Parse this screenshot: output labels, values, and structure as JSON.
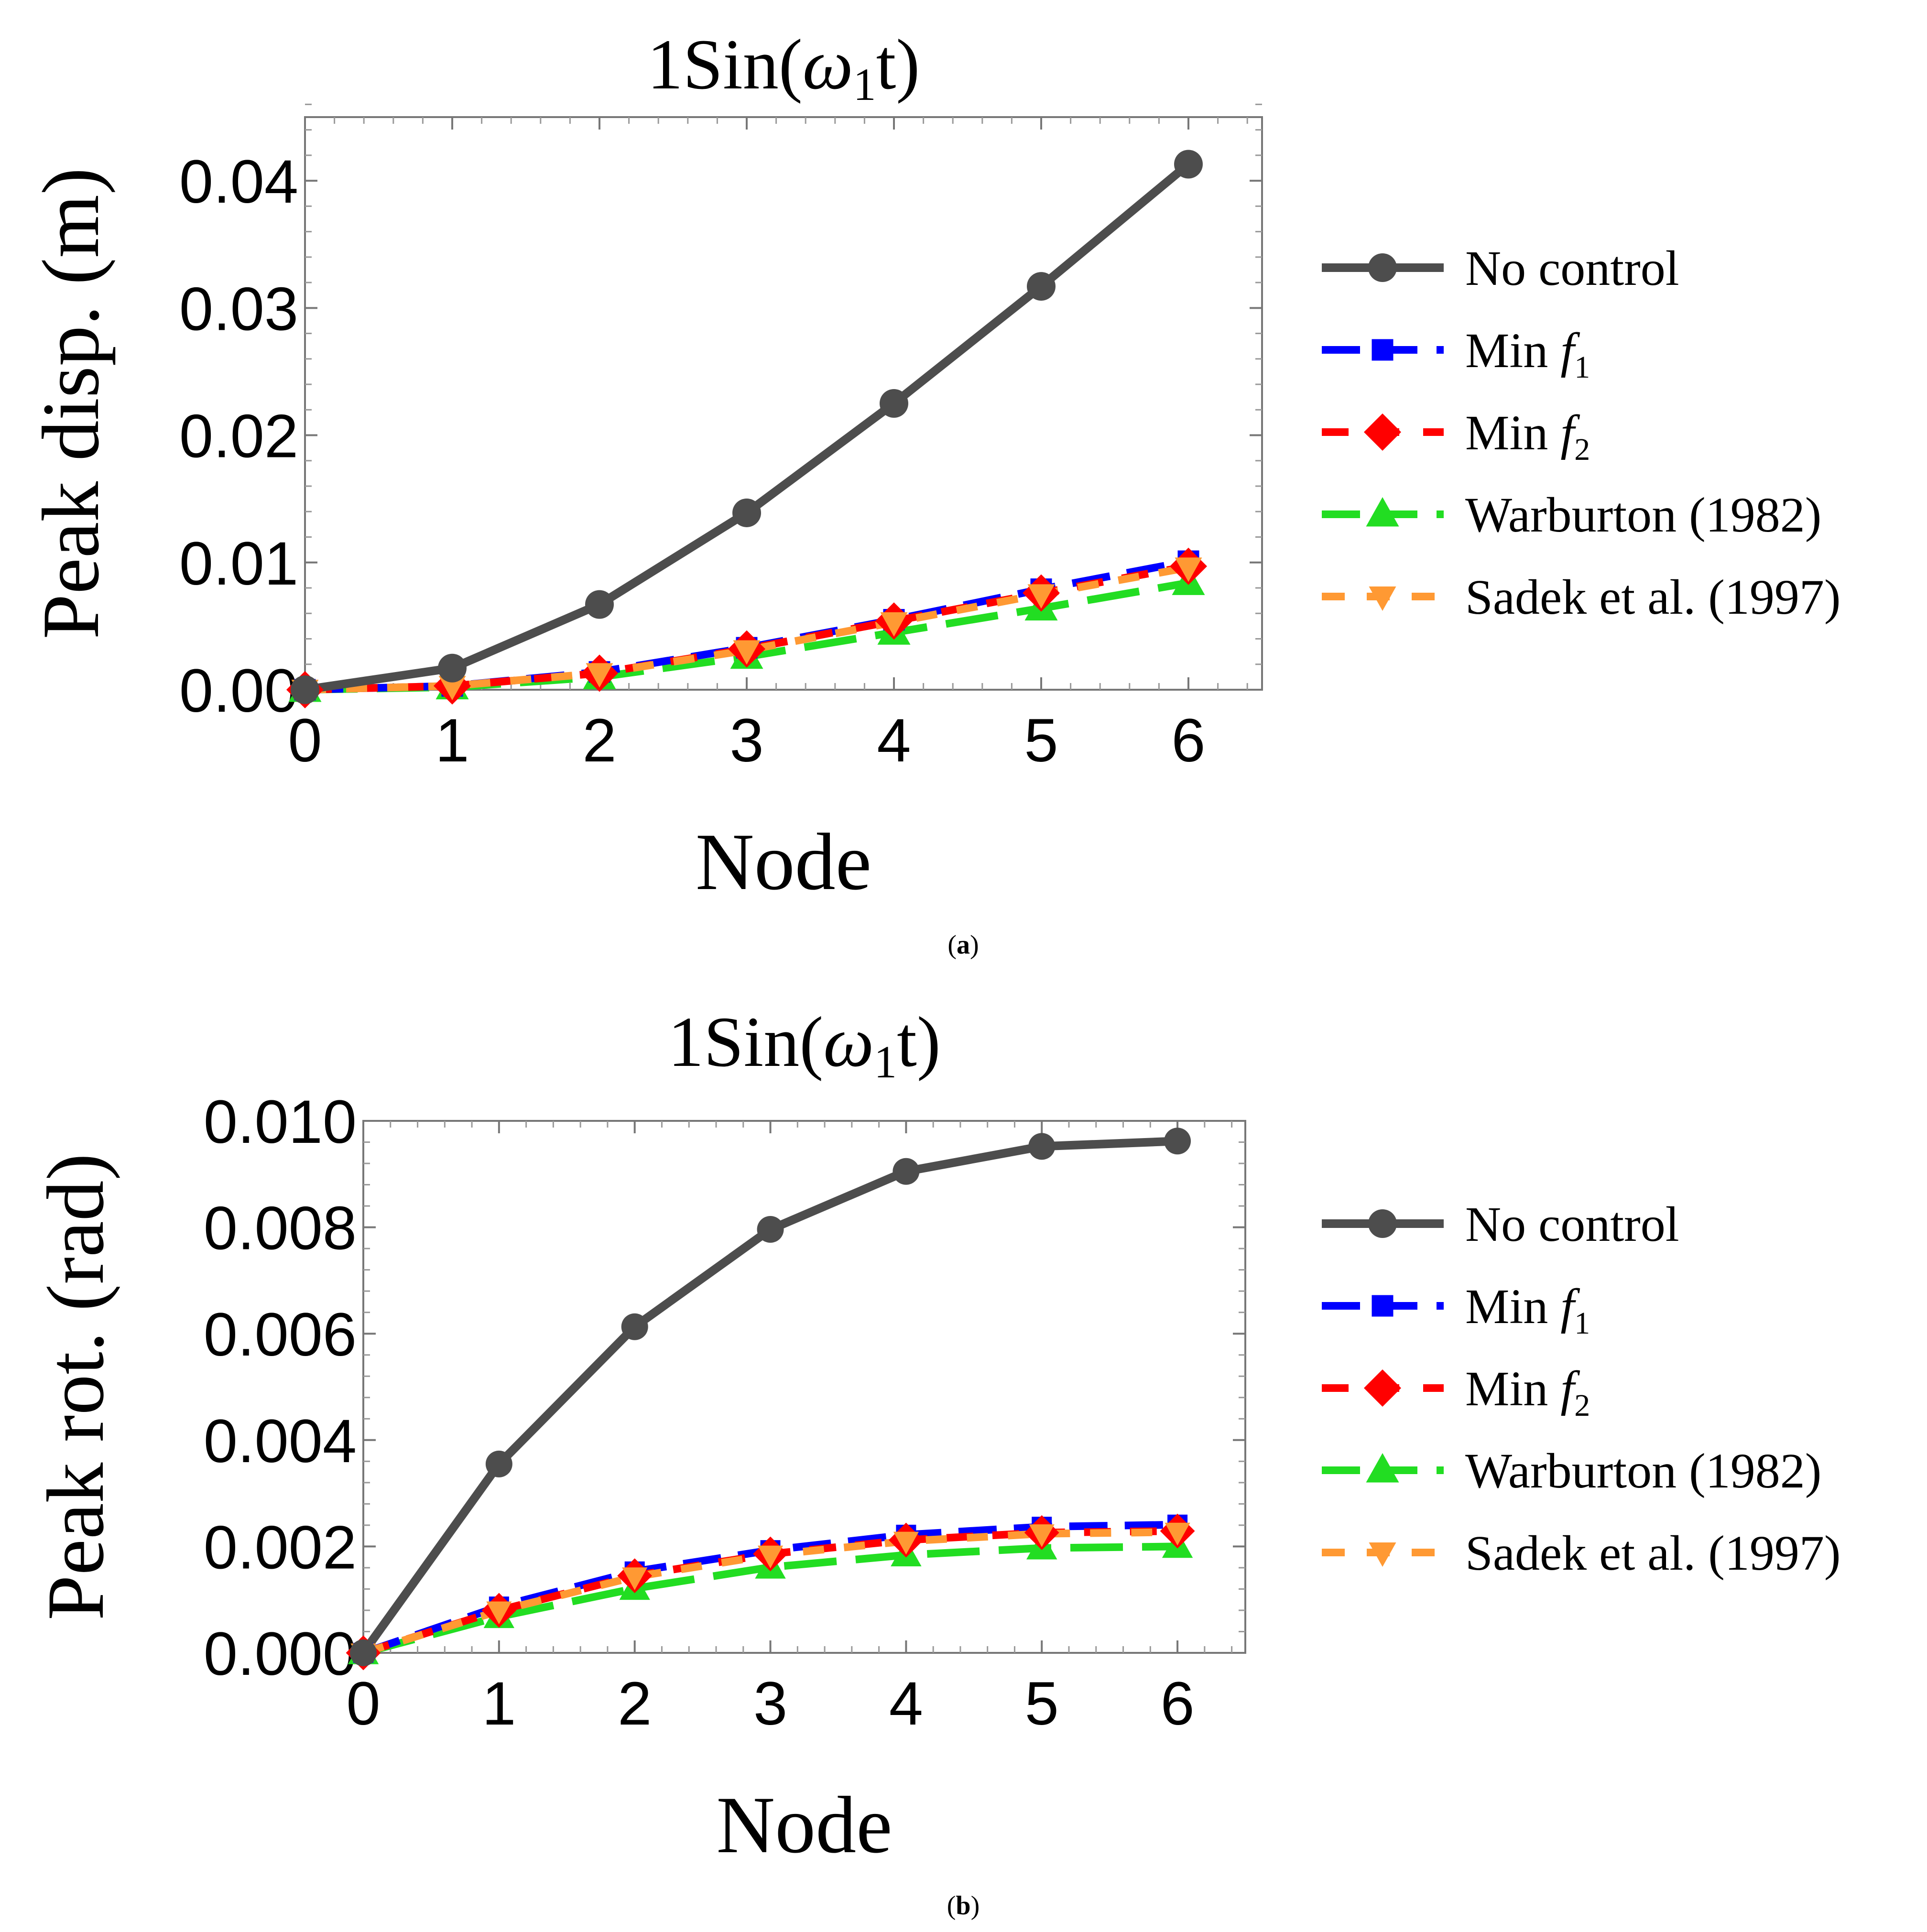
{
  "colors": {
    "no_control": "#4d4d4d",
    "min_f1": "#0000ff",
    "min_f2": "#ff0000",
    "warburton": "#22dd22",
    "sadek": "#ff9933"
  },
  "icons": {
    "no_control": "circle-marker",
    "min_f1": "square-marker",
    "min_f2": "diamond-marker",
    "warburton": "triangle-up-marker",
    "sadek": "triangle-down-marker"
  },
  "chart_data": [
    {
      "type": "line",
      "caption": "a",
      "title": {
        "prefix": "1Sin(",
        "omega": "ω",
        "subscript": "1",
        "suffix": "t)"
      },
      "xlabel": "Node",
      "ylabel": "Peak disp. (m)",
      "xlim": [
        0,
        6.5
      ],
      "ylim": [
        0,
        0.045
      ],
      "x_ticks": [
        "0",
        "1",
        "2",
        "3",
        "4",
        "5",
        "6"
      ],
      "y_ticks": [
        "0.00",
        "0.01",
        "0.02",
        "0.03",
        "0.04"
      ],
      "x": [
        0,
        1,
        2,
        3,
        4,
        5,
        6
      ],
      "series": [
        {
          "name": "No control",
          "values": [
            0,
            0.0017,
            0.0067,
            0.0139,
            0.0225,
            0.0317,
            0.0413
          ]
        },
        {
          "name": "Min f1",
          "values": [
            0,
            0.0003,
            0.0014,
            0.0033,
            0.0055,
            0.0079,
            0.0101
          ]
        },
        {
          "name": "Min f2",
          "values": [
            0,
            0.0003,
            0.0013,
            0.0032,
            0.0054,
            0.0076,
            0.0097
          ]
        },
        {
          "name": "Warburton (1982)",
          "values": [
            0,
            0.0002,
            0.001,
            0.0026,
            0.0045,
            0.0064,
            0.0084
          ]
        },
        {
          "name": "Sadek et al. (1997)",
          "values": [
            0,
            0.0003,
            0.0013,
            0.0031,
            0.0053,
            0.0075,
            0.0096
          ]
        }
      ]
    },
    {
      "type": "line",
      "caption": "b",
      "title": {
        "prefix": "1Sin(",
        "omega": "ω",
        "subscript": "1",
        "suffix": "t)"
      },
      "xlabel": "Node",
      "ylabel": "Peak rot. (rad)",
      "xlim": [
        0,
        6.5
      ],
      "ylim": [
        0,
        0.01
      ],
      "x_ticks": [
        "0",
        "1",
        "2",
        "3",
        "4",
        "5",
        "6"
      ],
      "y_ticks": [
        "0.000",
        "0.002",
        "0.004",
        "0.006",
        "0.008",
        "0.010"
      ],
      "x": [
        0,
        1,
        2,
        3,
        4,
        5,
        6
      ],
      "series": [
        {
          "name": "No control",
          "values": [
            0,
            0.00355,
            0.00613,
            0.00796,
            0.00905,
            0.00952,
            0.00962
          ]
        },
        {
          "name": "Min f1",
          "values": [
            0,
            0.00087,
            0.00153,
            0.00193,
            0.00222,
            0.00237,
            0.00241
          ]
        },
        {
          "name": "Min f2",
          "values": [
            0,
            0.0008,
            0.00145,
            0.00186,
            0.00212,
            0.00226,
            0.00229
          ]
        },
        {
          "name": "Warburton (1982)",
          "values": [
            0,
            0.00068,
            0.00121,
            0.00161,
            0.00184,
            0.00197,
            0.002
          ]
        },
        {
          "name": "Sadek et al. (1997)",
          "values": [
            0,
            0.00079,
            0.00143,
            0.00184,
            0.0021,
            0.00224,
            0.00227
          ]
        }
      ]
    }
  ],
  "legend": {
    "items": [
      {
        "key": "no_control",
        "prefix": "No control",
        "italic": "",
        "sub": ""
      },
      {
        "key": "min_f1",
        "prefix": "Min ",
        "italic": "f",
        "sub": "1"
      },
      {
        "key": "min_f2",
        "prefix": "Min ",
        "italic": "f",
        "sub": "2"
      },
      {
        "key": "warburton",
        "prefix": "Warburton (1982)",
        "italic": "",
        "sub": ""
      },
      {
        "key": "sadek",
        "prefix": "Sadek et al. (1997)",
        "italic": "",
        "sub": ""
      }
    ]
  }
}
